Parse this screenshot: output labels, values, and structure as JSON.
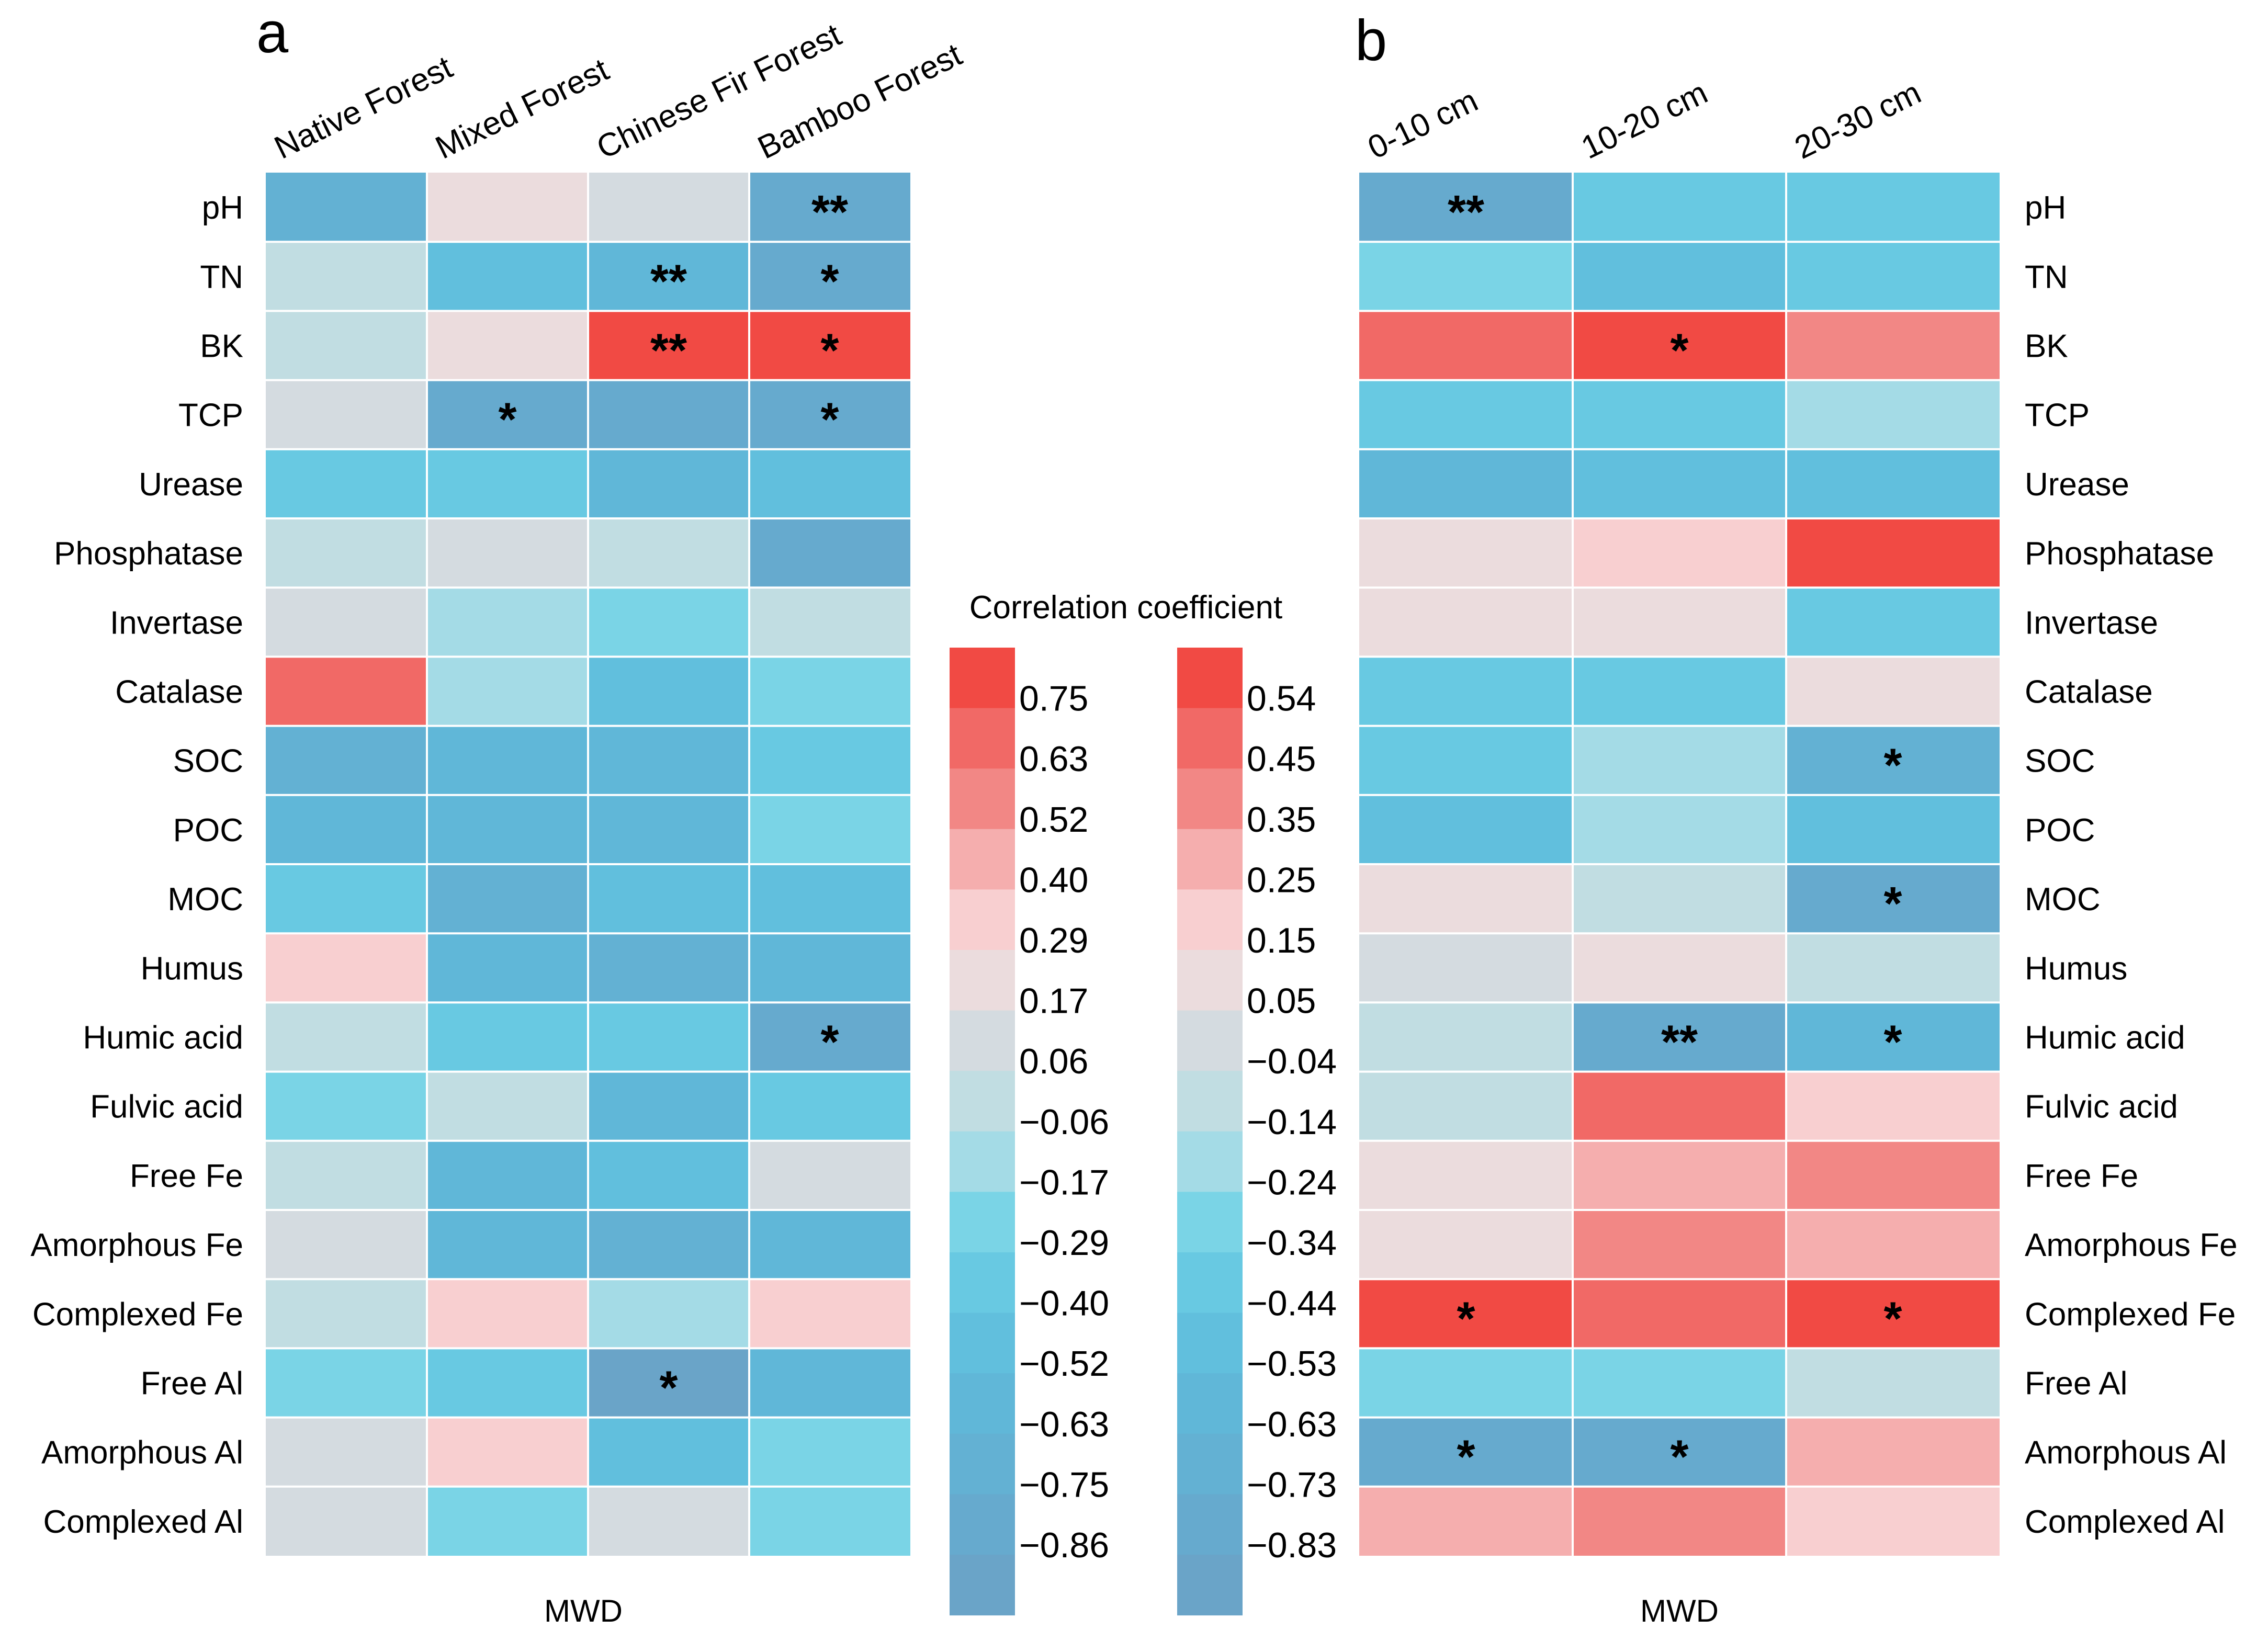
{
  "chart_data": {
    "type": "heatmap",
    "rows": [
      "pH",
      "TN",
      "BK",
      "TCP",
      "Urease",
      "Phosphatase",
      "Invertase",
      "Catalase",
      "SOC",
      "POC",
      "MOC",
      "Humus",
      "Humic acid",
      "Fulvic acid",
      "Free Fe",
      "Amorphous Fe",
      "Complexed Fe",
      "Free Al",
      "Amorphous Al",
      "Complexed Al"
    ],
    "legend_title": "Correlation coefficient",
    "panels": [
      {
        "letter": "a",
        "xlabel": "MWD",
        "columns": [
          "Native Forest",
          "Mixed Forest",
          "Chinese Fir Forest",
          "Bamboo Forest"
        ],
        "values": [
          [
            -0.7,
            0.25,
            0.12,
            -0.8
          ],
          [
            0.03,
            -0.45,
            -0.5,
            -0.72
          ],
          [
            -0.05,
            0.25,
            0.8,
            0.8
          ],
          [
            0.15,
            -0.75,
            -0.78,
            -0.72
          ],
          [
            -0.3,
            -0.3,
            -0.5,
            -0.45
          ],
          [
            0.03,
            0.12,
            0.03,
            -0.72
          ],
          [
            0.12,
            -0.15,
            -0.2,
            0.03
          ],
          [
            0.65,
            -0.15,
            -0.45,
            -0.2
          ],
          [
            -0.6,
            -0.55,
            -0.55,
            -0.3
          ],
          [
            -0.5,
            -0.5,
            -0.55,
            -0.17
          ],
          [
            -0.35,
            -0.65,
            -0.4,
            -0.45
          ],
          [
            0.28,
            -0.5,
            -0.62,
            -0.5
          ],
          [
            0.03,
            -0.35,
            -0.35,
            -0.78
          ],
          [
            -0.17,
            0.03,
            -0.5,
            -0.3
          ],
          [
            0.03,
            -0.5,
            -0.4,
            0.15
          ],
          [
            0.12,
            -0.55,
            -0.65,
            -0.55
          ],
          [
            0.03,
            0.28,
            -0.06,
            0.28
          ],
          [
            -0.17,
            -0.35,
            -0.82,
            -0.5
          ],
          [
            0.12,
            0.28,
            -0.4,
            -0.2
          ],
          [
            0.12,
            -0.2,
            0.12,
            -0.2
          ]
        ],
        "stars": [
          [
            "",
            "",
            "",
            "**"
          ],
          [
            "",
            "",
            "**",
            "*"
          ],
          [
            "",
            "",
            "**",
            "*"
          ],
          [
            "",
            "*",
            "",
            "*"
          ],
          [
            "",
            "",
            "",
            ""
          ],
          [
            "",
            "",
            "",
            ""
          ],
          [
            "",
            "",
            "",
            ""
          ],
          [
            "",
            "",
            "",
            ""
          ],
          [
            "",
            "",
            "",
            ""
          ],
          [
            "",
            "",
            "",
            ""
          ],
          [
            "",
            "",
            "",
            ""
          ],
          [
            "",
            "",
            "",
            ""
          ],
          [
            "",
            "",
            "",
            "*"
          ],
          [
            "",
            "",
            "",
            ""
          ],
          [
            "",
            "",
            "",
            ""
          ],
          [
            "",
            "",
            "",
            ""
          ],
          [
            "",
            "",
            "",
            ""
          ],
          [
            "",
            "",
            "*",
            ""
          ],
          [
            "",
            "",
            "",
            ""
          ],
          [
            "",
            "",
            "",
            ""
          ]
        ],
        "legend": {
          "ticks": [
            "0.75",
            "0.63",
            "0.52",
            "0.40",
            "0.29",
            "0.17",
            "0.06",
            "−0.06",
            "−0.17",
            "−0.29",
            "−0.40",
            "−0.52",
            "−0.63",
            "−0.75",
            "−0.86"
          ],
          "range": [
            -0.92,
            0.82
          ]
        }
      },
      {
        "letter": "b",
        "xlabel": "MWD",
        "columns": [
          "0-10 cm",
          "10-20 cm",
          "20-30 cm"
        ],
        "values": [
          [
            -0.75,
            -0.4,
            -0.4
          ],
          [
            -0.25,
            -0.48,
            -0.34
          ],
          [
            0.45,
            0.54,
            0.38
          ],
          [
            -0.38,
            -0.42,
            -0.22
          ],
          [
            -0.6,
            -0.44,
            -0.44
          ],
          [
            0.05,
            0.18,
            0.55
          ],
          [
            0.05,
            0.05,
            -0.34
          ],
          [
            -0.4,
            -0.38,
            0.05
          ],
          [
            -0.4,
            -0.2,
            -0.65
          ],
          [
            -0.48,
            -0.22,
            -0.48
          ],
          [
            0.05,
            -0.12,
            -0.7
          ],
          [
            -0.04,
            0.05,
            -0.12
          ],
          [
            -0.14,
            -0.75,
            -0.6
          ],
          [
            -0.14,
            0.45,
            0.18
          ],
          [
            0.05,
            0.3,
            0.4
          ],
          [
            0.05,
            0.4,
            0.3
          ],
          [
            0.55,
            0.45,
            0.55
          ],
          [
            -0.24,
            -0.24,
            -0.12
          ],
          [
            -0.7,
            -0.7,
            0.28
          ],
          [
            0.28,
            0.4,
            0.18
          ]
        ],
        "stars": [
          [
            "**",
            "",
            ""
          ],
          [
            "",
            "",
            ""
          ],
          [
            "",
            "*",
            ""
          ],
          [
            "",
            "",
            ""
          ],
          [
            "",
            "",
            ""
          ],
          [
            "",
            "",
            ""
          ],
          [
            "",
            "",
            ""
          ],
          [
            "",
            "",
            ""
          ],
          [
            "",
            "",
            "*"
          ],
          [
            "",
            "",
            ""
          ],
          [
            "",
            "",
            "*"
          ],
          [
            "",
            "",
            ""
          ],
          [
            "",
            "**",
            "*"
          ],
          [
            "",
            "",
            ""
          ],
          [
            "",
            "",
            ""
          ],
          [
            "",
            "",
            ""
          ],
          [
            "*",
            "",
            "*"
          ],
          [
            "",
            "",
            ""
          ],
          [
            "*",
            "*",
            ""
          ],
          [
            "",
            "",
            ""
          ]
        ],
        "legend": {
          "ticks": [
            "0.54",
            "0.45",
            "0.35",
            "0.25",
            "0.15",
            "0.05",
            "−0.04",
            "−0.14",
            "−0.24",
            "−0.34",
            "−0.44",
            "−0.53",
            "−0.63",
            "−0.73",
            "−0.83"
          ],
          "range": [
            -0.88,
            0.59
          ]
        }
      }
    ],
    "legend_colors": [
      "#6aa4c8",
      "#66aace",
      "#63b1d3",
      "#60b7d8",
      "#61bfdd",
      "#68c9e2",
      "#7ad4e6",
      "#a4dbe6",
      "#c1dde2",
      "#d4dbe0",
      "#ebdcdd",
      "#f8cfd0",
      "#f5aeae",
      "#f28785",
      "#f16966",
      "#f14a44"
    ]
  }
}
